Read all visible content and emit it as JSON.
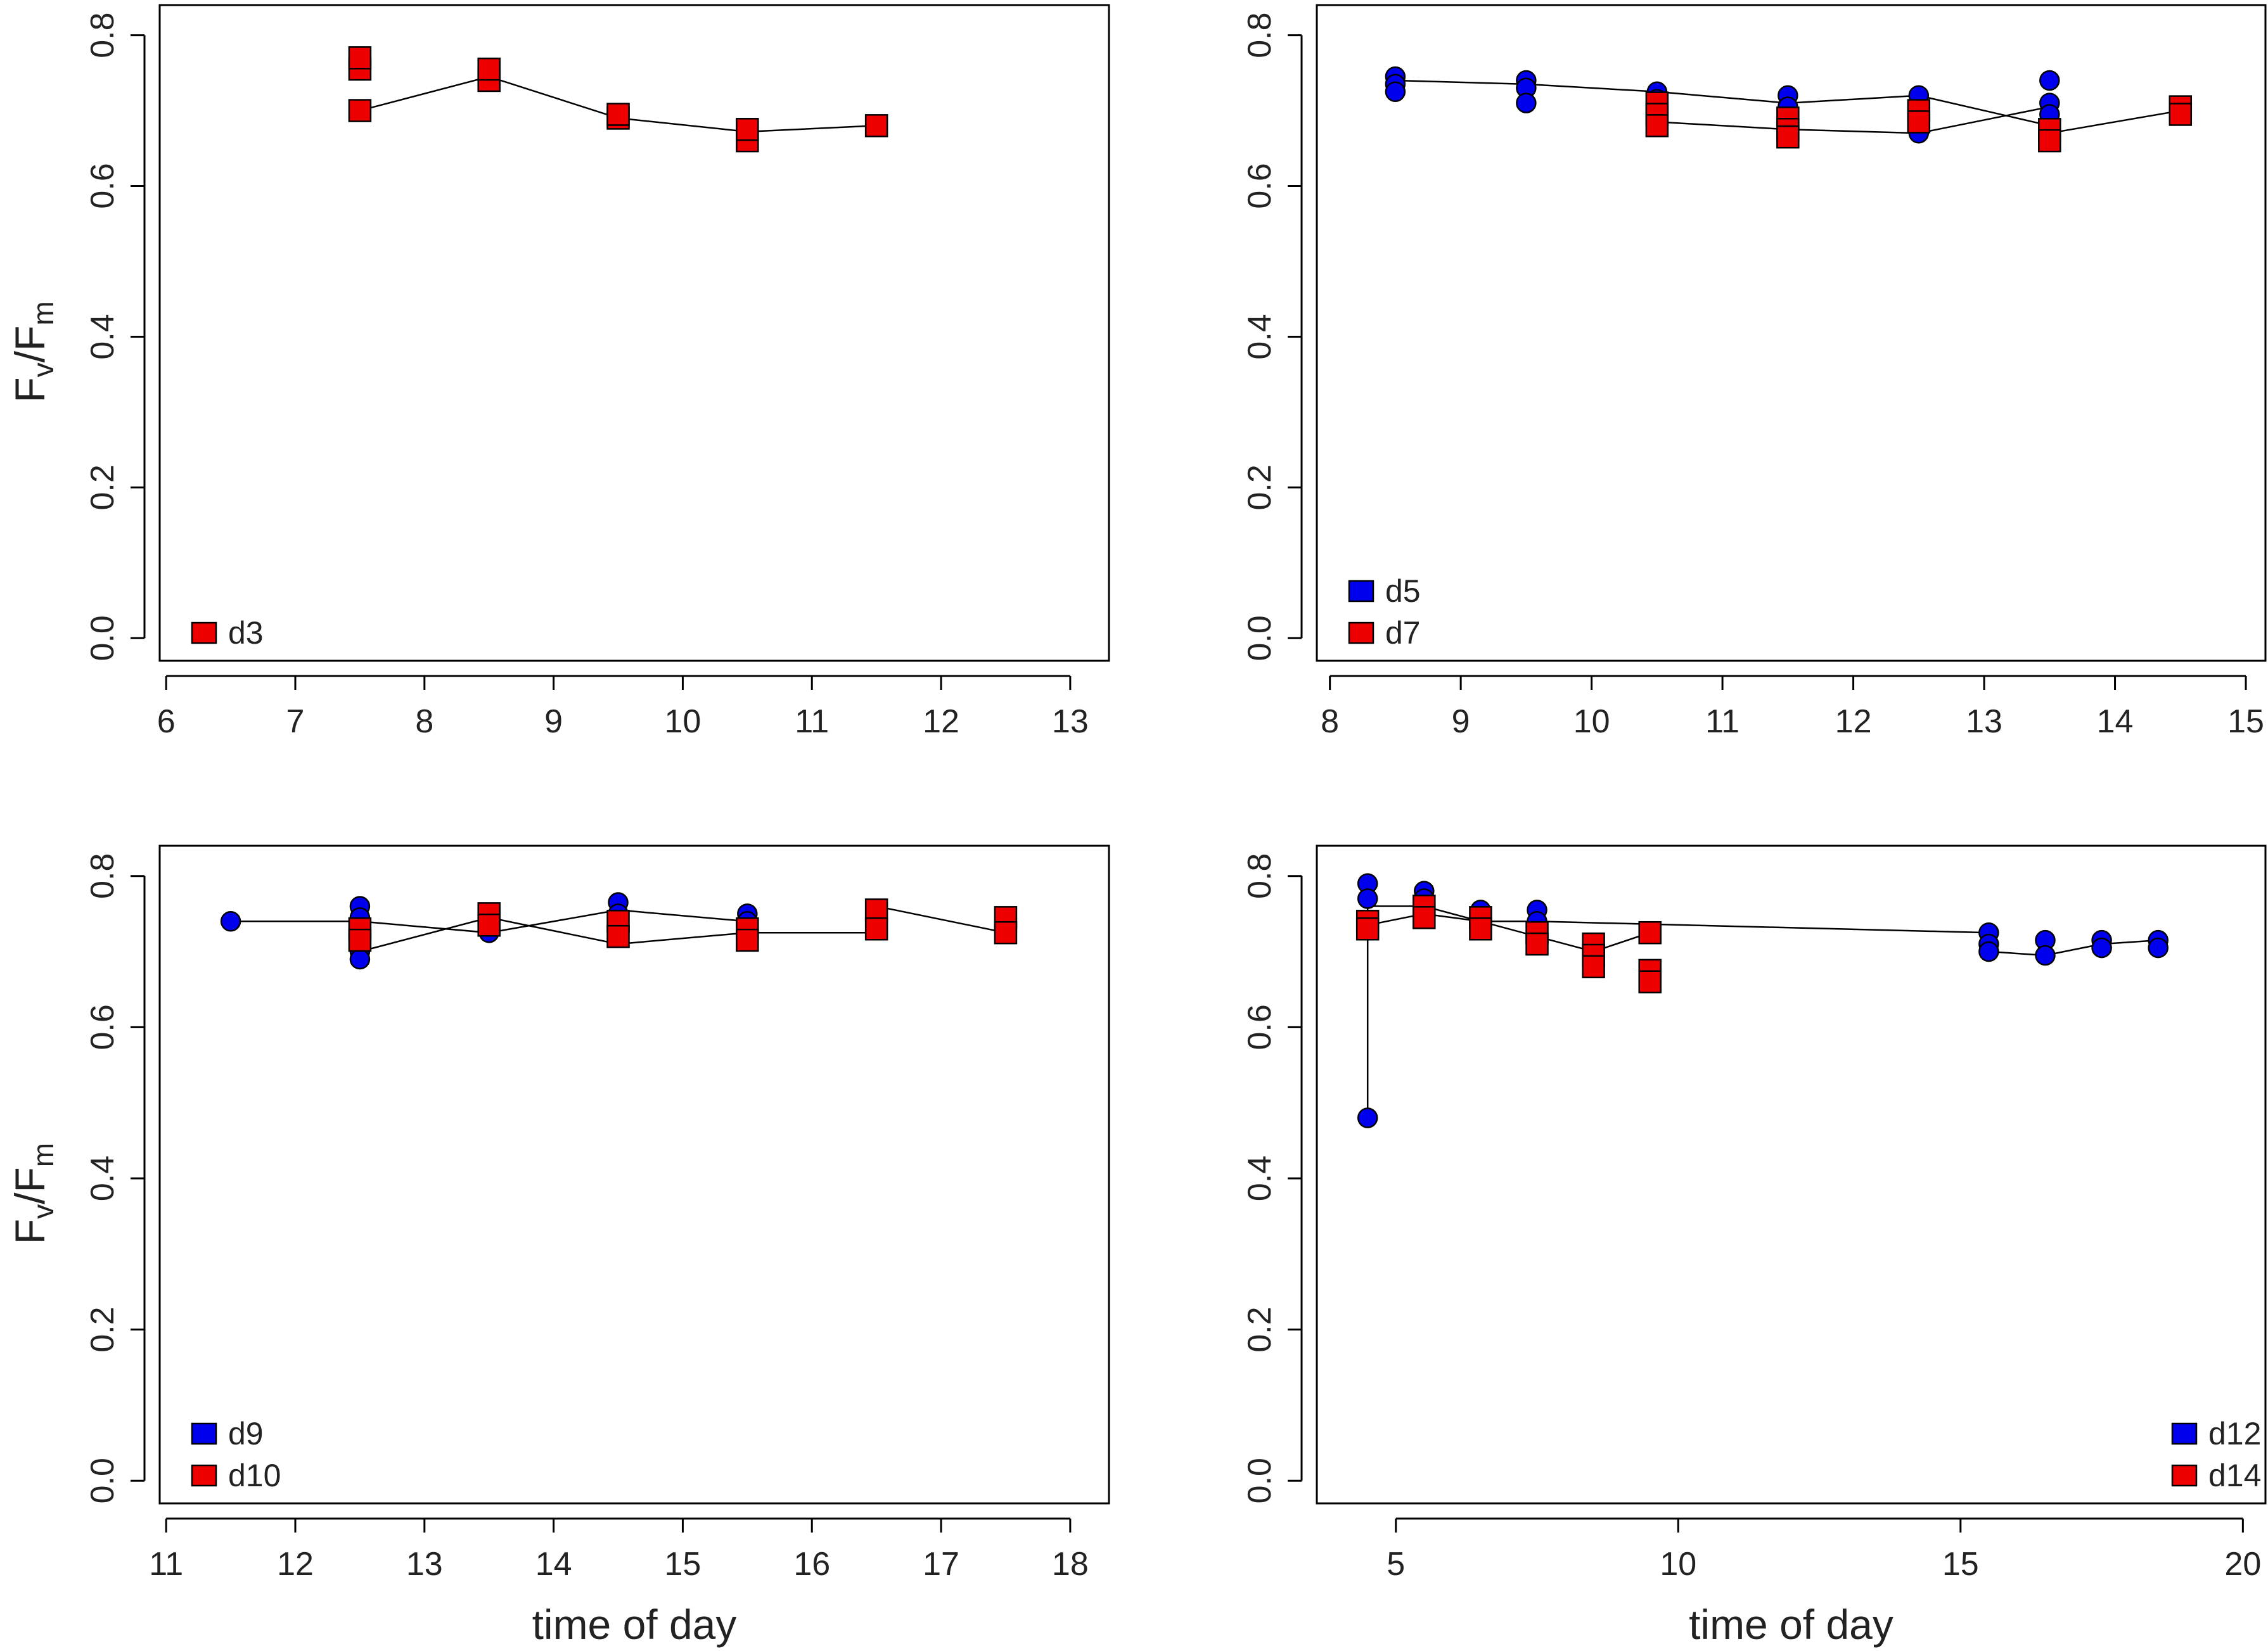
{
  "colors": {
    "series_blue": "#0000ee",
    "series_red": "#ee0000",
    "line": "#000000",
    "frame": "#000000"
  },
  "chart_data": [
    {
      "type": "scatter",
      "panel": "top-left",
      "xlabel": "",
      "ylabel": {
        "main": "F",
        "sub1": "v",
        "slash": "/",
        "main2": "F",
        "sub2": "m"
      },
      "xlim": [
        5.95,
        13.3
      ],
      "ylim": [
        -0.03,
        0.84
      ],
      "xticks": [
        6,
        7,
        8,
        9,
        10,
        11,
        12,
        13
      ],
      "yticks": [
        0.0,
        0.2,
        0.4,
        0.6,
        0.8
      ],
      "legend_position": "bottom-left",
      "series": [
        {
          "name": "d3",
          "color": "#ee0000",
          "marker": "square",
          "points": [
            [
              7.5,
              0.7
            ],
            [
              7.5,
              0.755
            ],
            [
              7.5,
              0.77
            ],
            [
              8.5,
              0.74
            ],
            [
              8.5,
              0.755
            ],
            [
              9.5,
              0.69
            ],
            [
              9.5,
              0.695
            ],
            [
              10.5,
              0.66
            ],
            [
              10.5,
              0.675
            ],
            [
              11.5,
              0.68
            ]
          ],
          "line": [
            [
              7.5,
              0.7
            ],
            [
              8.5,
              0.745
            ],
            [
              9.5,
              0.69
            ],
            [
              10.5,
              0.672
            ],
            [
              11.5,
              0.68
            ]
          ]
        }
      ]
    },
    {
      "type": "scatter",
      "panel": "top-right",
      "xlabel": "",
      "ylabel": null,
      "xlim": [
        7.9,
        15.15
      ],
      "ylim": [
        -0.03,
        0.84
      ],
      "xticks": [
        8,
        9,
        10,
        11,
        12,
        13,
        14,
        15
      ],
      "yticks": [
        0.0,
        0.2,
        0.4,
        0.6,
        0.8
      ],
      "legend_position": "bottom-left",
      "series": [
        {
          "name": "d5",
          "color": "#0000ee",
          "marker": "circle",
          "points": [
            [
              8.5,
              0.745
            ],
            [
              8.5,
              0.735
            ],
            [
              8.5,
              0.725
            ],
            [
              9.5,
              0.74
            ],
            [
              9.5,
              0.73
            ],
            [
              9.5,
              0.71
            ],
            [
              10.5,
              0.725
            ],
            [
              10.5,
              0.715
            ],
            [
              11.5,
              0.72
            ],
            [
              11.5,
              0.705
            ],
            [
              12.5,
              0.72
            ],
            [
              12.5,
              0.7
            ],
            [
              12.5,
              0.67
            ],
            [
              13.5,
              0.74
            ],
            [
              13.5,
              0.71
            ],
            [
              13.5,
              0.695
            ]
          ],
          "line": [
            [
              8.5,
              0.74
            ],
            [
              9.5,
              0.735
            ],
            [
              10.5,
              0.725
            ],
            [
              11.5,
              0.71
            ],
            [
              12.5,
              0.72
            ],
            [
              13.5,
              0.68
            ]
          ]
        },
        {
          "name": "d7",
          "color": "#ee0000",
          "marker": "square",
          "points": [
            [
              10.5,
              0.71
            ],
            [
              10.5,
              0.695
            ],
            [
              10.5,
              0.68
            ],
            [
              11.5,
              0.69
            ],
            [
              11.5,
              0.675
            ],
            [
              11.5,
              0.665
            ],
            [
              12.5,
              0.7
            ],
            [
              12.5,
              0.685
            ],
            [
              13.5,
              0.675
            ],
            [
              13.5,
              0.66
            ],
            [
              14.5,
              0.705
            ],
            [
              14.5,
              0.695
            ]
          ],
          "line": [
            [
              10.5,
              0.685
            ],
            [
              11.5,
              0.675
            ],
            [
              12.5,
              0.67
            ],
            [
              13.5,
              0.705
            ],
            [
              13.5,
              0.67
            ],
            [
              14.5,
              0.7
            ]
          ]
        }
      ]
    },
    {
      "type": "scatter",
      "panel": "bottom-left",
      "xlabel": "time of day",
      "ylabel": {
        "main": "F",
        "sub1": "v",
        "slash": "/",
        "main2": "F",
        "sub2": "m"
      },
      "xlim": [
        10.95,
        18.3
      ],
      "ylim": [
        -0.03,
        0.84
      ],
      "xticks": [
        11,
        12,
        13,
        14,
        15,
        16,
        17,
        18
      ],
      "yticks": [
        0.0,
        0.2,
        0.4,
        0.6,
        0.8
      ],
      "legend_position": "bottom-left",
      "series": [
        {
          "name": "d9",
          "color": "#0000ee",
          "marker": "circle",
          "points": [
            [
              11.5,
              0.74
            ],
            [
              12.5,
              0.76
            ],
            [
              12.5,
              0.745
            ],
            [
              12.5,
              0.7
            ],
            [
              12.5,
              0.69
            ],
            [
              13.5,
              0.725
            ],
            [
              14.5,
              0.765
            ],
            [
              14.5,
              0.75
            ],
            [
              15.5,
              0.75
            ],
            [
              15.5,
              0.74
            ]
          ],
          "line": [
            [
              11.5,
              0.74
            ],
            [
              12.5,
              0.74
            ],
            [
              13.5,
              0.725
            ],
            [
              14.5,
              0.755
            ],
            [
              15.5,
              0.74
            ]
          ]
        },
        {
          "name": "d10",
          "color": "#ee0000",
          "marker": "square",
          "points": [
            [
              12.5,
              0.73
            ],
            [
              12.5,
              0.715
            ],
            [
              13.5,
              0.75
            ],
            [
              13.5,
              0.735
            ],
            [
              14.5,
              0.74
            ],
            [
              14.5,
              0.72
            ],
            [
              15.5,
              0.73
            ],
            [
              15.5,
              0.715
            ],
            [
              16.5,
              0.755
            ],
            [
              16.5,
              0.73
            ],
            [
              17.5,
              0.745
            ],
            [
              17.5,
              0.725
            ]
          ],
          "line": [
            [
              12.5,
              0.7
            ],
            [
              13.5,
              0.745
            ],
            [
              14.5,
              0.71
            ],
            [
              15.5,
              0.725
            ],
            [
              16.5,
              0.725
            ],
            [
              16.5,
              0.76
            ],
            [
              17.5,
              0.725
            ]
          ]
        }
      ]
    },
    {
      "type": "scatter",
      "panel": "bottom-right",
      "xlabel": "time of day",
      "ylabel": null,
      "xlim": [
        3.6,
        20.4
      ],
      "ylim": [
        -0.03,
        0.84
      ],
      "xticks": [
        5,
        10,
        15,
        20
      ],
      "yticks": [
        0.0,
        0.2,
        0.4,
        0.6,
        0.8
      ],
      "legend_position": "bottom-right",
      "series": [
        {
          "name": "d12",
          "color": "#0000ee",
          "marker": "circle",
          "points": [
            [
              4.5,
              0.79
            ],
            [
              4.5,
              0.77
            ],
            [
              4.5,
              0.48
            ],
            [
              5.5,
              0.78
            ],
            [
              5.5,
              0.77
            ],
            [
              6.5,
              0.755
            ],
            [
              7.5,
              0.755
            ],
            [
              7.5,
              0.74
            ],
            [
              15.5,
              0.725
            ],
            [
              15.5,
              0.71
            ],
            [
              15.5,
              0.7
            ],
            [
              16.5,
              0.715
            ],
            [
              16.5,
              0.695
            ],
            [
              17.5,
              0.715
            ],
            [
              17.5,
              0.705
            ],
            [
              18.5,
              0.715
            ],
            [
              18.5,
              0.705
            ]
          ],
          "line": [
            [
              4.5,
              0.48
            ],
            [
              4.5,
              0.76
            ],
            [
              5.5,
              0.76
            ],
            [
              6.5,
              0.74
            ],
            [
              7.5,
              0.74
            ],
            [
              15.5,
              0.725
            ],
            [
              15.5,
              0.7
            ],
            [
              16.5,
              0.695
            ],
            [
              17.5,
              0.71
            ],
            [
              18.5,
              0.715
            ]
          ]
        },
        {
          "name": "d14",
          "color": "#ee0000",
          "marker": "square",
          "points": [
            [
              4.5,
              0.74
            ],
            [
              4.5,
              0.73
            ],
            [
              5.5,
              0.76
            ],
            [
              5.5,
              0.745
            ],
            [
              6.5,
              0.745
            ],
            [
              6.5,
              0.73
            ],
            [
              7.5,
              0.725
            ],
            [
              7.5,
              0.71
            ],
            [
              8.5,
              0.71
            ],
            [
              8.5,
              0.695
            ],
            [
              8.5,
              0.68
            ],
            [
              9.5,
              0.725
            ],
            [
              9.5,
              0.675
            ],
            [
              9.5,
              0.66
            ]
          ],
          "line": [
            [
              4.5,
              0.735
            ],
            [
              5.5,
              0.75
            ],
            [
              6.5,
              0.74
            ],
            [
              7.5,
              0.72
            ],
            [
              8.5,
              0.7
            ],
            [
              9.5,
              0.725
            ]
          ]
        }
      ]
    }
  ]
}
